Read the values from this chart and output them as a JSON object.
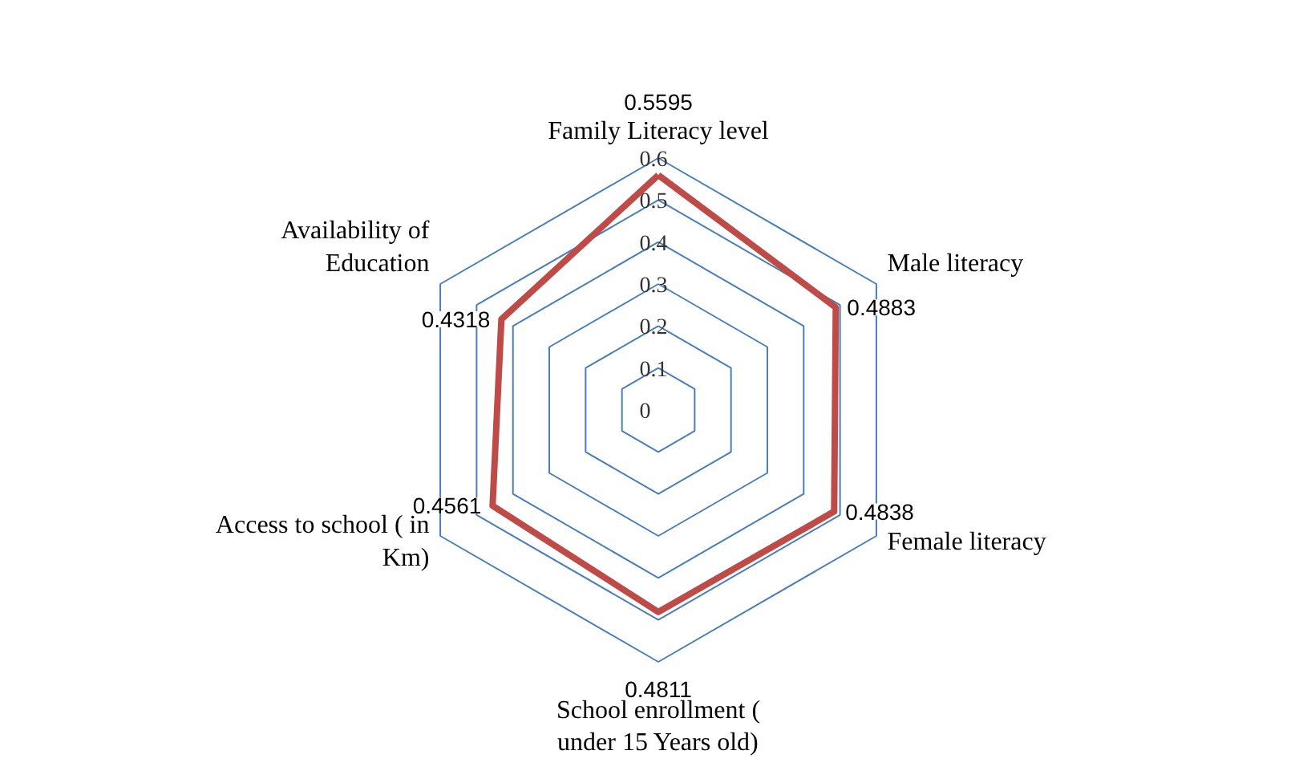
{
  "chart_data": {
    "type": "radar",
    "categories": [
      "Family Literacy level",
      "Male literacy",
      "Female literacy",
      "School enrollment (\nunder 15 Years old)",
      "Access to school ( in\nKm)",
      "Availability of\nEducation"
    ],
    "series": [
      {
        "color": "#be4b48",
        "values": [
          0.5595,
          0.4883,
          0.4838,
          0.4811,
          0.4561,
          0.4318
        ]
      }
    ],
    "ylim": [
      0,
      0.6
    ],
    "yticks": [
      0,
      0.1,
      0.2,
      0.3,
      0.4,
      0.5,
      0.6
    ],
    "data_labels": true,
    "grid": true,
    "line_style": "solid",
    "marker": "none"
  }
}
